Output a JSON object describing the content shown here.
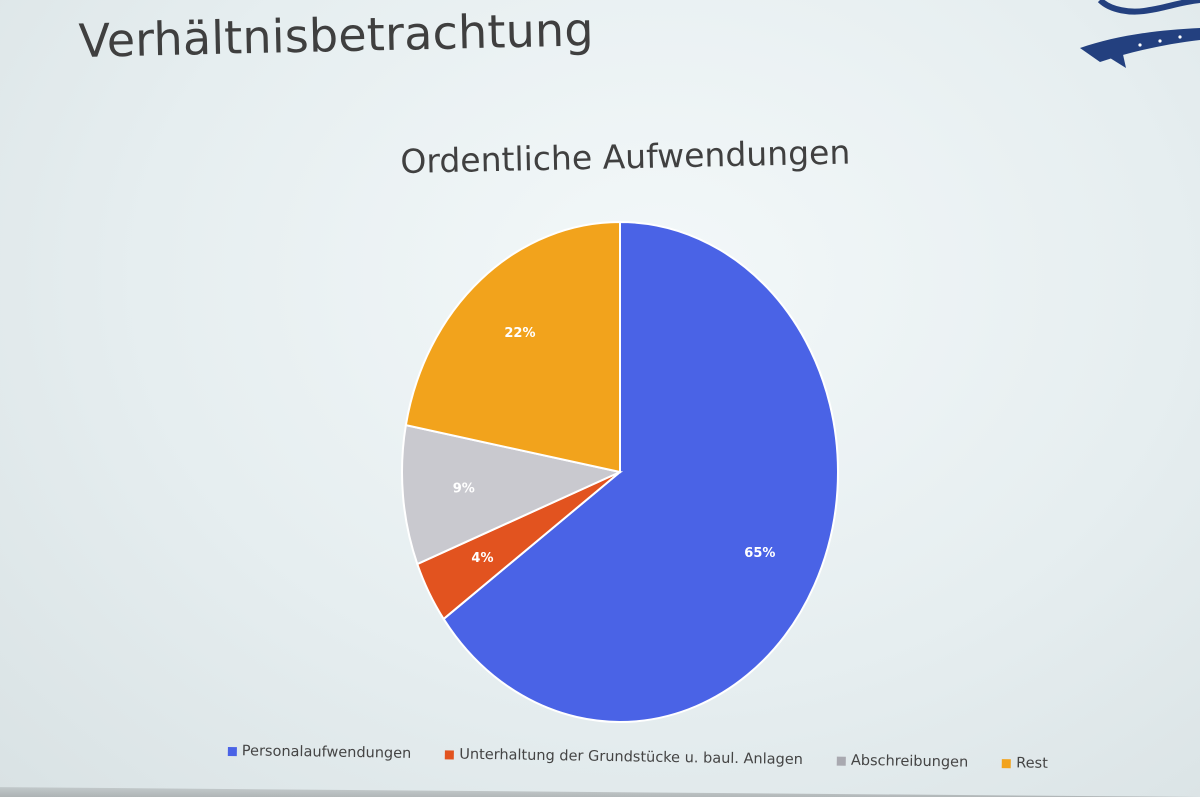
{
  "slide": {
    "title": "Verhältnisbetrachtung"
  },
  "chart_data": {
    "type": "pie",
    "title": "Ordentliche Aufwendungen",
    "categories": [
      "Personalaufwendungen",
      "Unterhaltung der Grundstücke u. baul. Anlagen",
      "Abschreibungen",
      "Rest"
    ],
    "values": [
      65,
      4,
      9,
      22
    ],
    "data_labels": [
      "65%",
      "4%",
      "9%",
      "22%"
    ],
    "colors": [
      "#4a63e6",
      "#e2531f",
      "#c9c9cf",
      "#f2a31c"
    ],
    "legend_position": "bottom"
  }
}
